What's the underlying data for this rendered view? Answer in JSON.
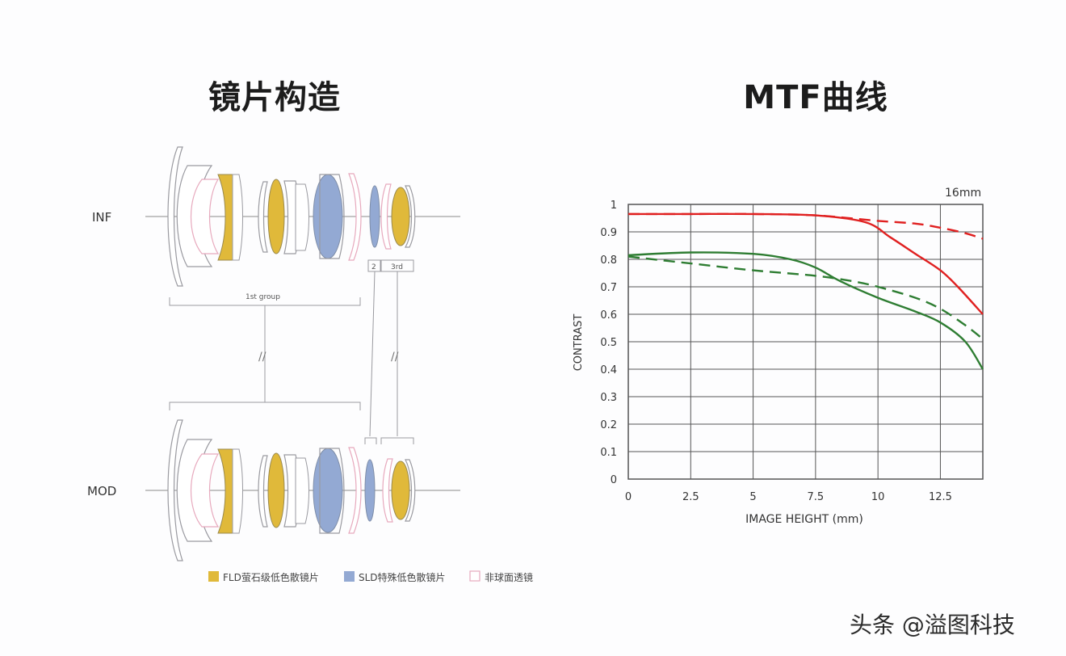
{
  "titles": {
    "lens_structure": "镜片构造",
    "mtf": "MTF曲线"
  },
  "lens_diagram": {
    "row_labels": [
      "INF",
      "MOD"
    ],
    "group_labels": [
      "1st group",
      "2",
      "3rd"
    ],
    "legend": [
      {
        "label": "FLD萤石级低色散镜片",
        "color": "#e0b93a"
      },
      {
        "label": "SLD特殊低色散镜片",
        "color": "#93a9d3"
      },
      {
        "label": "非球面透镜",
        "color": "#f1c9d4"
      }
    ],
    "colors": {
      "fld": "#e0b93a",
      "sld": "#93a9d3",
      "aspherical": "#e7a9bd",
      "outline": "#9a9aa0",
      "axis": "#707070"
    }
  },
  "chart_data": {
    "type": "line",
    "focal_label": "16mm",
    "xlabel": "IMAGE HEIGHT (mm)",
    "ylabel": "CONTRAST",
    "xlim": [
      0,
      14.2
    ],
    "ylim": [
      0,
      1
    ],
    "xticks": [
      "0",
      "2.5",
      "5",
      "7.5",
      "10",
      "12.5"
    ],
    "xtick_values": [
      0,
      2.5,
      5,
      7.5,
      10,
      12.5
    ],
    "yticks": [
      "0",
      "0.1",
      "0.2",
      "0.3",
      "0.4",
      "0.5",
      "0.6",
      "0.7",
      "0.8",
      "0.9",
      "1"
    ],
    "ytick_values": [
      0,
      0.1,
      0.2,
      0.3,
      0.4,
      0.5,
      0.6,
      0.7,
      0.8,
      0.9,
      1
    ],
    "grid": true,
    "series": [
      {
        "color": "#e02020",
        "dash": false,
        "x": [
          0,
          2.5,
          5,
          7.5,
          9.5,
          10.5,
          11.5,
          12.5,
          13.2,
          14.2
        ],
        "y": [
          0.965,
          0.965,
          0.965,
          0.96,
          0.935,
          0.88,
          0.82,
          0.76,
          0.7,
          0.6
        ]
      },
      {
        "color": "#e02020",
        "dash": true,
        "x": [
          0,
          2.5,
          5,
          7.5,
          10,
          11.5,
          12.5,
          13.5,
          14.2
        ],
        "y": [
          0.965,
          0.965,
          0.965,
          0.96,
          0.94,
          0.93,
          0.915,
          0.895,
          0.875
        ]
      },
      {
        "color": "#2e7d32",
        "dash": false,
        "x": [
          0,
          2.5,
          5,
          6.5,
          7.5,
          8.5,
          10,
          11.5,
          12.5,
          13.5,
          14.2
        ],
        "y": [
          0.815,
          0.825,
          0.82,
          0.8,
          0.77,
          0.72,
          0.66,
          0.61,
          0.57,
          0.5,
          0.4
        ]
      },
      {
        "color": "#2e7d32",
        "dash": true,
        "x": [
          0,
          2.5,
          5,
          7.5,
          9,
          10,
          11.5,
          12.5,
          13.5,
          14.2
        ],
        "y": [
          0.81,
          0.785,
          0.76,
          0.74,
          0.72,
          0.7,
          0.66,
          0.62,
          0.56,
          0.51
        ]
      }
    ]
  },
  "watermark": "头条 @溢图科技"
}
